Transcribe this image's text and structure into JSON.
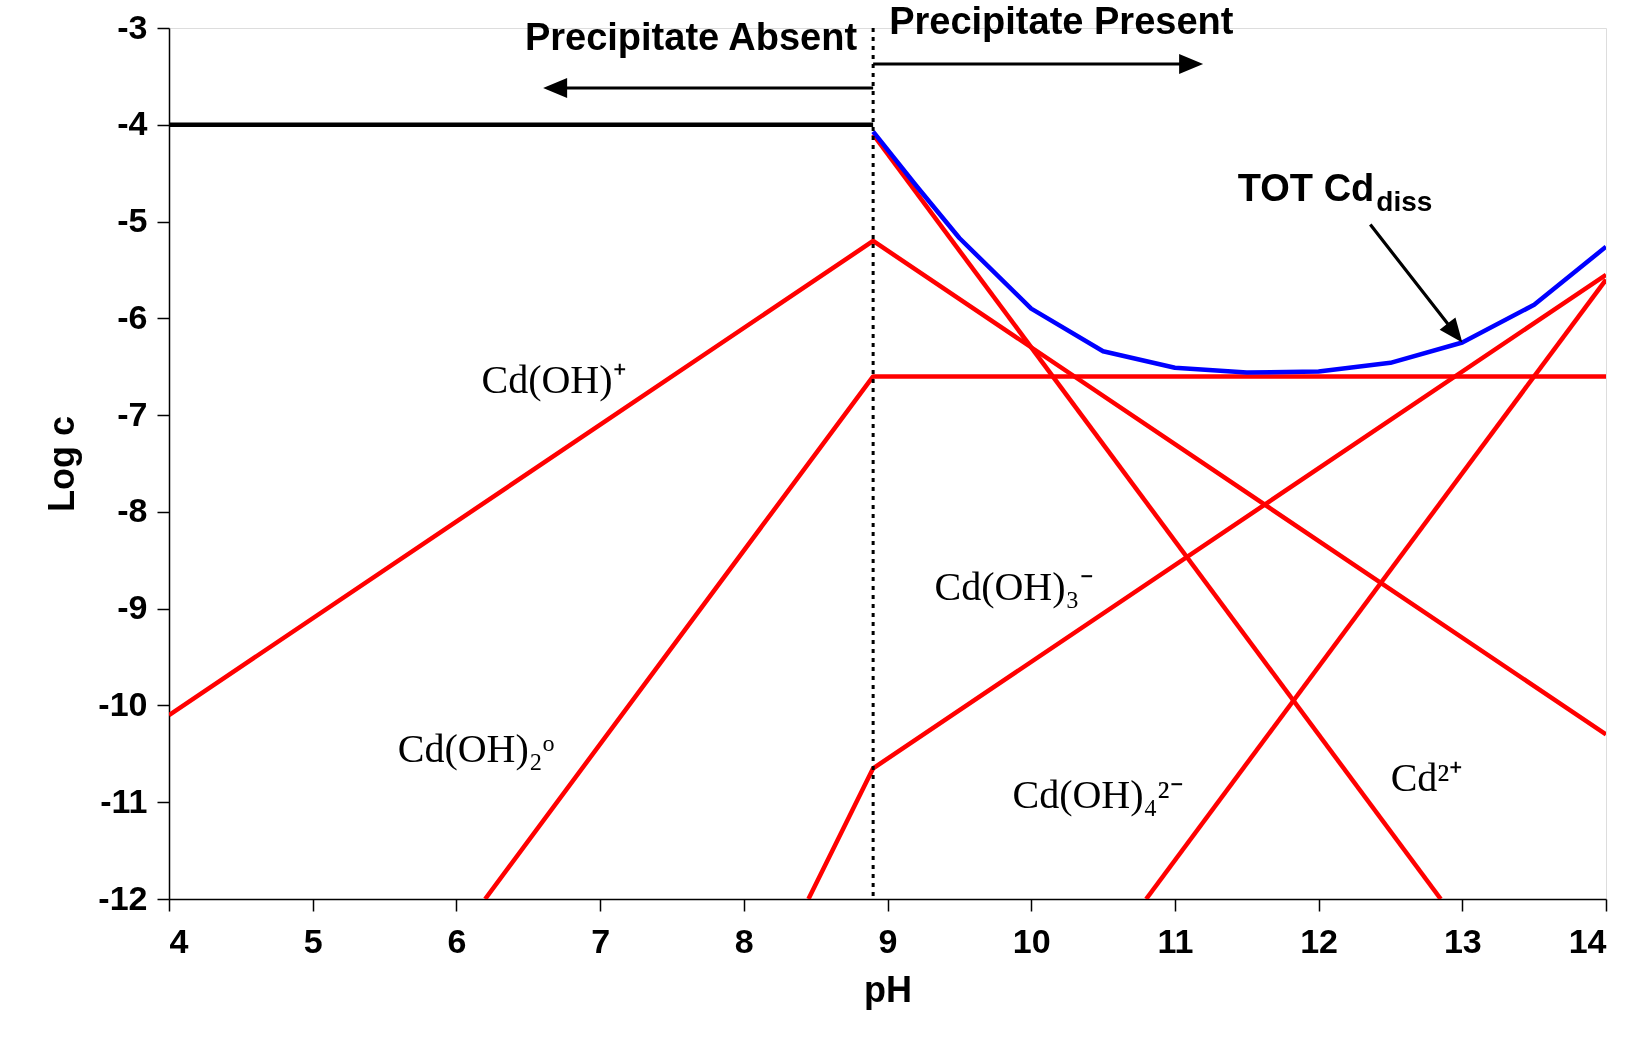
{
  "chart_data": {
    "type": "line",
    "xlabel": "pH",
    "ylabel": "Log c",
    "xlim": [
      4,
      14
    ],
    "ylim": [
      -12,
      -3
    ],
    "xticks": [
      4,
      5,
      6,
      7,
      8,
      9,
      10,
      11,
      12,
      13,
      14
    ],
    "yticks": [
      -12,
      -11,
      -10,
      -9,
      -8,
      -7,
      -6,
      -5,
      -4,
      -3
    ],
    "grid": false,
    "legend": false,
    "marker": "none",
    "line_style": "solid",
    "series": [
      {
        "color": "#000000",
        "x": [
          4,
          8.9
        ],
        "values": [
          -4,
          -4
        ]
      },
      {
        "color": "#ff0000",
        "x": [
          8.9,
          12.85
        ],
        "values": [
          -4.1,
          -12
        ]
      },
      {
        "color": "#ff0000",
        "x": [
          4,
          8.9,
          14
        ],
        "values": [
          -10.1,
          -5.2,
          -10.3
        ]
      },
      {
        "color": "#ff0000",
        "x": [
          6.2,
          8.9,
          14
        ],
        "values": [
          -12,
          -6.6,
          -6.6
        ]
      },
      {
        "color": "#ff0000",
        "x": [
          8.45,
          8.9,
          14
        ],
        "values": [
          -12,
          -10.65,
          -5.55
        ]
      },
      {
        "color": "#ff0000",
        "x": [
          10.8,
          14
        ],
        "values": [
          -12,
          -5.6
        ]
      },
      {
        "name": "TOT Cd$_{diss}$",
        "color": "#0000ff",
        "x": [
          8.9,
          9.2,
          9.5,
          10,
          10.5,
          11,
          11.5,
          12,
          12.5,
          13,
          13.5,
          14
        ],
        "values": [
          -4.07,
          -4.63,
          -5.17,
          -5.9,
          -6.34,
          -6.51,
          -6.56,
          -6.55,
          -6.46,
          -6.25,
          -5.86,
          -5.26
        ]
      }
    ],
    "ref_lines": [
      {
        "axis": "x",
        "value": 8.9,
        "color": "#000000",
        "line_style": "dotted"
      }
    ],
    "annotations": [
      "Precipitate Absent",
      "Precipitate Present",
      "Cd(OH)⁺",
      "Cd(OH)₂ᵒ",
      "Cd(OH)₃⁻",
      "Cd(OH)₄²⁻",
      "Cd²⁺"
    ]
  }
}
